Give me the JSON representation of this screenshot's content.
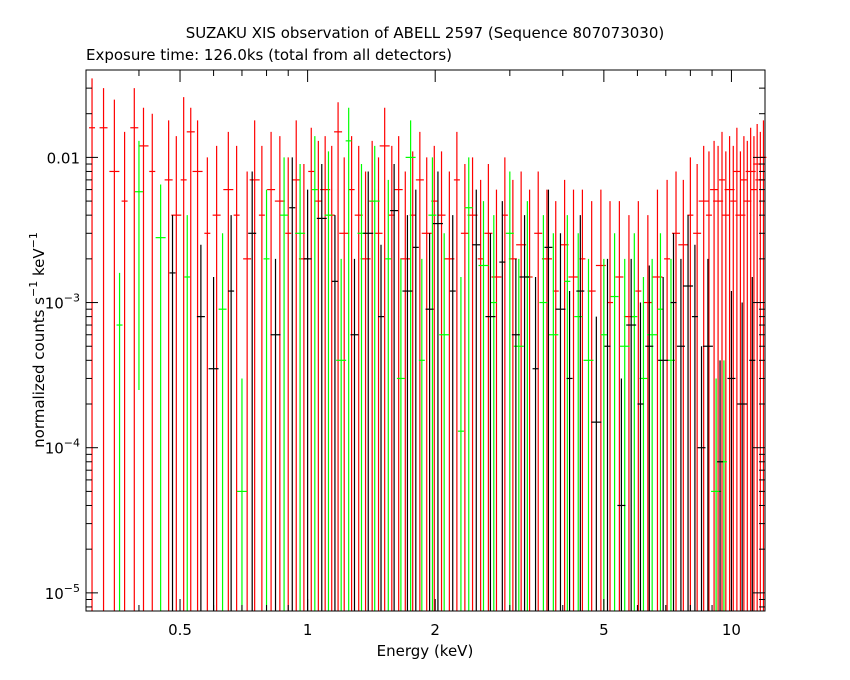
{
  "chart_data": {
    "type": "scatter",
    "title": "SUZAKU XIS observation of ABELL 2597 (Sequence 807073030)",
    "subtitle": "Exposure time: 126.0ks (total from all detectors)",
    "xlabel": "Energy (keV)",
    "ylabel_main": "normalized counts s",
    "ylabel_sup1": "−1",
    "ylabel_mid": " keV",
    "ylabel_sup2": "−1",
    "x_scale": "log",
    "y_scale": "log",
    "xlim": [
      0.3,
      12
    ],
    "ylim": [
      7.5e-06,
      0.04
    ],
    "x_ticks": [
      {
        "value": 0.5,
        "label": "0.5"
      },
      {
        "value": 1,
        "label": "1"
      },
      {
        "value": 2,
        "label": "2"
      },
      {
        "value": 5,
        "label": "5"
      },
      {
        "value": 10,
        "label": "10"
      }
    ],
    "y_ticks": [
      {
        "value": 1e-05,
        "label": "10",
        "exp": "−5"
      },
      {
        "value": 0.0001,
        "label": "10",
        "exp": "−4"
      },
      {
        "value": 0.001,
        "label": "10",
        "exp": "−3"
      },
      {
        "value": 0.01,
        "label": "0.01",
        "exp": ""
      }
    ],
    "grid": false,
    "colors": {
      "xis0": "#000000",
      "xis1": "#ff0000",
      "xis3": "#00ff00"
    },
    "series": [
      {
        "color": "#ff0000",
        "points": [
          [
            0.31,
            0.016,
            0.035,
            7.5e-06
          ],
          [
            0.33,
            0.016,
            0.03,
            7.5e-06
          ],
          [
            0.35,
            0.008,
            0.025,
            7.5e-06
          ],
          [
            0.37,
            0.005,
            0.015,
            7.5e-06
          ],
          [
            0.39,
            0.016,
            0.03,
            7.5e-06
          ],
          [
            0.41,
            0.012,
            0.022,
            7.5e-06
          ],
          [
            0.43,
            0.008,
            0.02,
            7.5e-06
          ],
          [
            0.47,
            0.007,
            0.018,
            7.5e-06
          ],
          [
            0.49,
            0.004,
            0.014,
            7.5e-06
          ],
          [
            0.51,
            0.007,
            0.026,
            7.5e-06
          ],
          [
            0.53,
            0.015,
            0.022,
            7.5e-06
          ],
          [
            0.55,
            0.008,
            0.018,
            7.5e-06
          ],
          [
            0.58,
            0.003,
            0.01,
            7.5e-06
          ],
          [
            0.61,
            0.004,
            0.012,
            7.5e-06
          ],
          [
            0.65,
            0.006,
            0.015,
            7.5e-06
          ],
          [
            0.68,
            0.004,
            0.012,
            7.5e-06
          ],
          [
            0.72,
            0.002,
            0.008,
            7.5e-06
          ],
          [
            0.75,
            0.007,
            0.018,
            7.5e-06
          ],
          [
            0.78,
            0.004,
            0.012,
            7.5e-06
          ],
          [
            0.82,
            0.006,
            0.015,
            7.5e-06
          ],
          [
            0.86,
            0.005,
            0.014,
            7.5e-06
          ],
          [
            0.9,
            0.003,
            0.01,
            7.5e-06
          ],
          [
            0.94,
            0.007,
            0.018,
            7.5e-06
          ],
          [
            0.98,
            0.002,
            0.009,
            7.5e-06
          ],
          [
            1.02,
            0.008,
            0.016,
            7.5e-06
          ],
          [
            1.06,
            0.005,
            0.013,
            7.5e-06
          ],
          [
            1.1,
            0.006,
            0.014,
            7.5e-06
          ],
          [
            1.14,
            0.004,
            0.012,
            7.5e-06
          ],
          [
            1.18,
            0.015,
            0.024,
            7.5e-06
          ],
          [
            1.22,
            0.003,
            0.01,
            7.5e-06
          ],
          [
            1.27,
            0.006,
            0.014,
            7.5e-06
          ],
          [
            1.32,
            0.004,
            0.012,
            7.5e-06
          ],
          [
            1.37,
            0.002,
            0.008,
            7.5e-06
          ],
          [
            1.42,
            0.005,
            0.013,
            7.5e-06
          ],
          [
            1.47,
            0.003,
            0.01,
            7.5e-06
          ],
          [
            1.52,
            0.012,
            0.022,
            7.5e-06
          ],
          [
            1.58,
            0.004,
            0.012,
            7.5e-06
          ],
          [
            1.64,
            0.006,
            0.014,
            7.5e-06
          ],
          [
            1.7,
            0.002,
            0.008,
            7.5e-06
          ],
          [
            1.77,
            0.004,
            0.011,
            7.5e-06
          ],
          [
            1.84,
            0.007,
            0.015,
            7.5e-06
          ],
          [
            1.91,
            0.003,
            0.01,
            7.5e-06
          ],
          [
            1.99,
            0.005,
            0.012,
            7.5e-06
          ],
          [
            2.07,
            0.004,
            0.011,
            7.5e-06
          ],
          [
            2.16,
            0.002,
            0.008,
            7.5e-06
          ],
          [
            2.25,
            0.007,
            0.015,
            7.5e-06
          ],
          [
            2.35,
            0.003,
            0.009,
            7.5e-06
          ],
          [
            2.45,
            0.004,
            0.01,
            7.5e-06
          ],
          [
            2.56,
            0.002,
            0.007,
            7.5e-06
          ],
          [
            2.67,
            0.003,
            0.009,
            7.5e-06
          ],
          [
            2.79,
            0.0015,
            0.006,
            7.5e-06
          ],
          [
            2.92,
            0.004,
            0.01,
            7.5e-06
          ],
          [
            3.05,
            0.002,
            0.007,
            7.5e-06
          ],
          [
            3.19,
            0.0025,
            0.008,
            7.5e-06
          ],
          [
            3.34,
            0.0015,
            0.006,
            7.5e-06
          ],
          [
            3.5,
            0.003,
            0.008,
            7.5e-06
          ],
          [
            3.67,
            0.002,
            0.006,
            7.5e-06
          ],
          [
            3.85,
            0.0012,
            0.005,
            7.5e-06
          ],
          [
            4.04,
            0.0025,
            0.007,
            7.5e-06
          ],
          [
            4.24,
            0.0015,
            0.006,
            7.5e-06
          ],
          [
            4.45,
            0.002,
            0.006,
            7.5e-06
          ],
          [
            4.68,
            0.0012,
            0.005,
            7.5e-06
          ],
          [
            4.92,
            0.0018,
            0.006,
            7.5e-06
          ],
          [
            5.17,
            0.001,
            0.005,
            7.5e-06
          ],
          [
            5.44,
            0.0015,
            0.005,
            7.5e-06
          ],
          [
            5.73,
            0.0008,
            0.004,
            7.5e-06
          ],
          [
            6.03,
            0.0012,
            0.005,
            7.5e-06
          ],
          [
            6.35,
            0.001,
            0.004,
            7.5e-06
          ],
          [
            6.69,
            0.0015,
            0.006,
            7.5e-06
          ],
          [
            7.05,
            0.002,
            0.007,
            7.5e-06
          ],
          [
            7.4,
            0.003,
            0.008,
            7.5e-06
          ],
          [
            7.7,
            0.0025,
            0.007,
            7.5e-06
          ],
          [
            8.0,
            0.004,
            0.01,
            7.5e-06
          ],
          [
            8.3,
            0.003,
            0.009,
            7.5e-06
          ],
          [
            8.6,
            0.005,
            0.012,
            7.5e-06
          ],
          [
            8.85,
            0.004,
            0.011,
            7.5e-06
          ],
          [
            9.1,
            0.006,
            0.013,
            7.5e-06
          ],
          [
            9.3,
            0.005,
            0.012,
            7.5e-06
          ],
          [
            9.5,
            0.007,
            0.015,
            7.5e-06
          ],
          [
            9.7,
            0.004,
            0.011,
            7.5e-06
          ],
          [
            9.9,
            0.006,
            0.014,
            7.5e-06
          ],
          [
            10.1,
            0.005,
            0.012,
            7.5e-06
          ],
          [
            10.3,
            0.008,
            0.016,
            7.5e-06
          ],
          [
            10.5,
            0.004,
            0.011,
            7.5e-06
          ],
          [
            10.7,
            0.007,
            0.014,
            7.5e-06
          ],
          [
            10.9,
            0.005,
            0.013,
            7.5e-06
          ],
          [
            11.1,
            0.008,
            0.016,
            7.5e-06
          ],
          [
            11.3,
            0.006,
            0.014,
            7.5e-06
          ],
          [
            11.5,
            0.009,
            0.017,
            7.5e-06
          ],
          [
            11.7,
            0.007,
            0.015,
            7.5e-06
          ],
          [
            11.9,
            0.01,
            0.018,
            7.5e-06
          ]
        ]
      },
      {
        "color": "#00ff00",
        "points": [
          [
            0.36,
            0.0007,
            0.0016,
            7.5e-06
          ],
          [
            0.4,
            0.0058,
            0.013,
            0.00025
          ],
          [
            0.45,
            0.0028,
            0.0065,
            7.5e-06
          ],
          [
            0.52,
            0.0015,
            0.004,
            7.5e-06
          ],
          [
            0.63,
            0.0009,
            0.003,
            7.5e-06
          ],
          [
            0.7,
            5e-05,
            0.0003,
            7.5e-06
          ],
          [
            0.8,
            0.002,
            0.006,
            7.5e-06
          ],
          [
            0.88,
            0.004,
            0.01,
            7.5e-06
          ],
          [
            0.96,
            0.003,
            0.009,
            7.5e-06
          ],
          [
            1.04,
            0.006,
            0.014,
            7.5e-06
          ],
          [
            1.12,
            0.004,
            0.011,
            7.5e-06
          ],
          [
            1.2,
            0.0004,
            0.002,
            7.5e-06
          ],
          [
            1.25,
            0.013,
            0.022,
            7.5e-06
          ],
          [
            1.34,
            0.003,
            0.009,
            7.5e-06
          ],
          [
            1.44,
            0.005,
            0.012,
            7.5e-06
          ],
          [
            1.55,
            0.002,
            0.007,
            7.5e-06
          ],
          [
            1.66,
            0.0003,
            0.002,
            7.5e-06
          ],
          [
            1.75,
            0.01,
            0.018,
            7.5e-06
          ],
          [
            1.86,
            0.0004,
            0.002,
            7.5e-06
          ],
          [
            1.97,
            0.004,
            0.01,
            7.5e-06
          ],
          [
            2.1,
            0.0006,
            0.003,
            7.5e-06
          ],
          [
            2.3,
            0.00013,
            0.0015,
            7.5e-06
          ],
          [
            2.4,
            0.0045,
            0.01,
            7.5e-06
          ],
          [
            2.6,
            0.0018,
            0.005,
            7.5e-06
          ],
          [
            2.75,
            0.001,
            0.004,
            7.5e-06
          ],
          [
            3.0,
            0.003,
            0.008,
            7.5e-06
          ],
          [
            3.15,
            0.0005,
            0.002,
            7.5e-06
          ],
          [
            3.3,
            0.0015,
            0.005,
            7.5e-06
          ],
          [
            3.6,
            0.001,
            0.004,
            7.5e-06
          ],
          [
            3.8,
            0.0006,
            0.003,
            7.5e-06
          ],
          [
            4.1,
            0.0014,
            0.004,
            7.5e-06
          ],
          [
            4.35,
            0.0008,
            0.003,
            7.5e-06
          ],
          [
            4.6,
            0.0004,
            0.002,
            7.5e-06
          ],
          [
            5.0,
            0.0006,
            0.002,
            7.5e-06
          ],
          [
            5.3,
            0.0011,
            0.003,
            7.5e-06
          ],
          [
            5.6,
            0.0005,
            0.002,
            7.5e-06
          ],
          [
            5.9,
            0.0008,
            0.003,
            7.5e-06
          ],
          [
            6.2,
            0.0003,
            0.0015,
            7.5e-06
          ],
          [
            6.5,
            0.0006,
            0.002,
            7.5e-06
          ],
          [
            6.8,
            0.0009,
            0.003,
            7.5e-06
          ],
          [
            7.2,
            0.0004,
            0.002,
            7.5e-06
          ],
          [
            9.2,
            5e-05,
            0.0003,
            7.5e-06
          ],
          [
            9.6,
            8e-05,
            0.0004,
            7.5e-06
          ]
        ]
      },
      {
        "color": "#000000",
        "points": [
          [
            0.48,
            0.0016,
            0.004,
            7.5e-06
          ],
          [
            0.56,
            0.0008,
            0.0025,
            7.5e-06
          ],
          [
            0.6,
            0.00035,
            0.0015,
            7.5e-06
          ],
          [
            0.66,
            0.0012,
            0.004,
            7.5e-06
          ],
          [
            0.74,
            0.003,
            0.008,
            7.5e-06
          ],
          [
            0.84,
            0.0006,
            0.002,
            7.5e-06
          ],
          [
            0.92,
            0.0045,
            0.01,
            7.5e-06
          ],
          [
            1.0,
            0.002,
            0.006,
            7.5e-06
          ],
          [
            1.08,
            0.0038,
            0.009,
            7.5e-06
          ],
          [
            1.16,
            0.0014,
            0.004,
            7.5e-06
          ],
          [
            1.29,
            0.0006,
            0.002,
            7.5e-06
          ],
          [
            1.39,
            0.003,
            0.008,
            7.5e-06
          ],
          [
            1.49,
            0.0008,
            0.0025,
            7.5e-06
          ],
          [
            1.6,
            0.0043,
            0.009,
            7.5e-06
          ],
          [
            1.72,
            0.0012,
            0.004,
            7.5e-06
          ],
          [
            1.8,
            0.0024,
            0.006,
            7.5e-06
          ],
          [
            1.94,
            0.0009,
            0.003,
            7.5e-06
          ],
          [
            2.03,
            0.0035,
            0.008,
            7.5e-06
          ],
          [
            2.2,
            0.0012,
            0.004,
            7.5e-06
          ],
          [
            2.5,
            0.0025,
            0.006,
            7.5e-06
          ],
          [
            2.7,
            0.0008,
            0.003,
            7.5e-06
          ],
          [
            2.88,
            0.0019,
            0.005,
            7.5e-06
          ],
          [
            3.1,
            0.0006,
            0.002,
            7.5e-06
          ],
          [
            3.25,
            0.0015,
            0.004,
            7.5e-06
          ],
          [
            3.45,
            0.00035,
            0.0015,
            7.5e-06
          ],
          [
            3.7,
            0.0024,
            0.006,
            7.5e-06
          ],
          [
            3.95,
            0.0009,
            0.003,
            7.5e-06
          ],
          [
            4.15,
            0.0003,
            0.0012,
            7.5e-06
          ],
          [
            4.4,
            0.0012,
            0.004,
            7.5e-06
          ],
          [
            4.8,
            0.00015,
            0.0008,
            7.5e-06
          ],
          [
            5.1,
            0.0005,
            0.002,
            7.5e-06
          ],
          [
            5.5,
            4e-05,
            0.0003,
            7.5e-06
          ],
          [
            5.8,
            0.0007,
            0.002,
            7.5e-06
          ],
          [
            6.1,
            0.0002,
            0.001,
            7.5e-06
          ],
          [
            6.4,
            0.0005,
            0.0018,
            7.5e-06
          ],
          [
            6.9,
            0.0004,
            0.0015,
            7.5e-06
          ],
          [
            7.3,
            0.001,
            0.003,
            7.5e-06
          ],
          [
            7.6,
            0.0005,
            0.002,
            7.5e-06
          ],
          [
            7.9,
            0.0013,
            0.004,
            7.5e-06
          ],
          [
            8.2,
            0.0008,
            0.0025,
            7.5e-06
          ],
          [
            8.5,
            0.0001,
            0.0005,
            7.5e-06
          ],
          [
            8.8,
            0.0005,
            0.002,
            7.5e-06
          ],
          [
            9.4,
            8e-05,
            0.0004,
            7.5e-06
          ],
          [
            10.0,
            0.0003,
            0.0012,
            7.5e-06
          ],
          [
            10.6,
            0.0002,
            0.001,
            7.5e-06
          ],
          [
            11.2,
            0.0004,
            0.0015,
            7.5e-06
          ]
        ]
      }
    ]
  }
}
